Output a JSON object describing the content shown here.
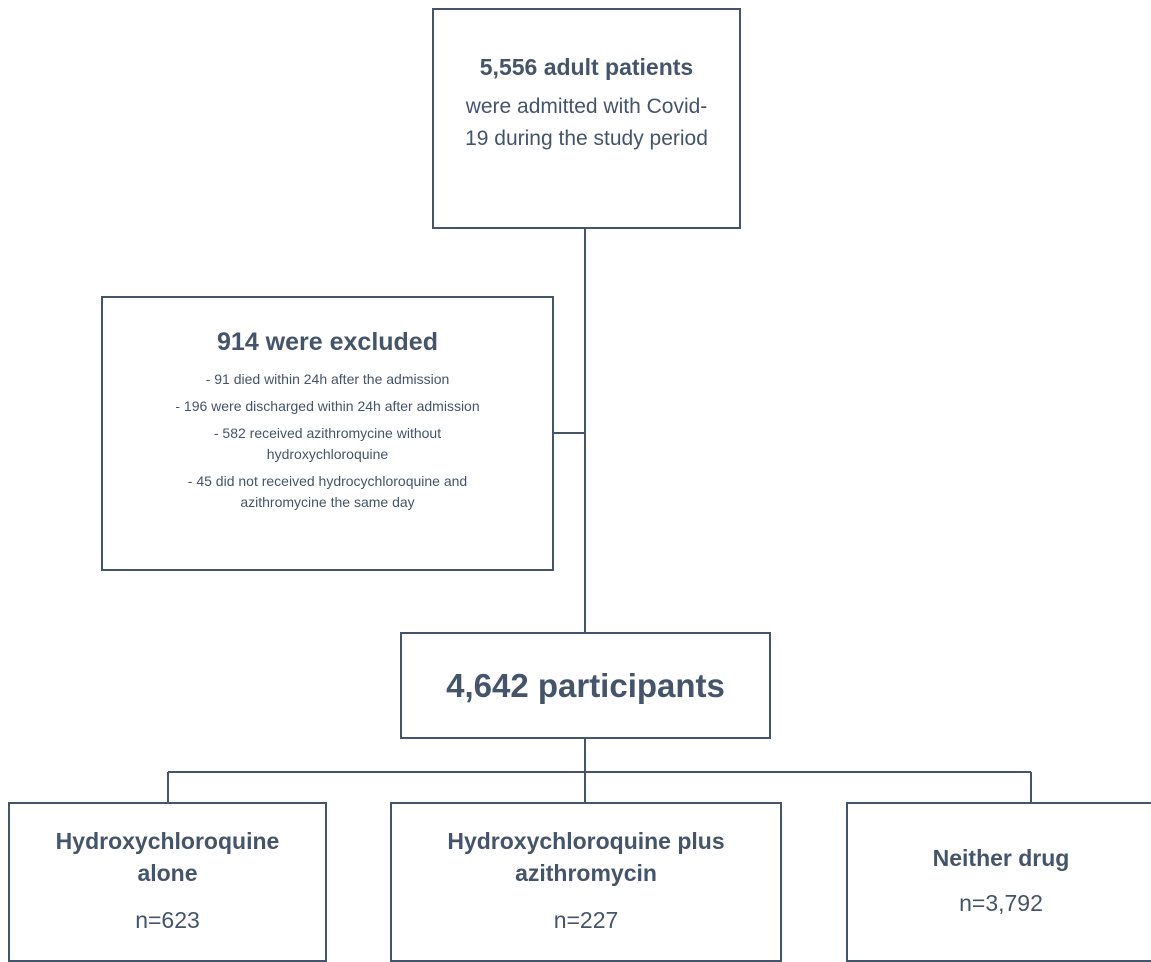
{
  "nodes": [
    {
      "title": "5,556 adult patients",
      "text": "were admitted with Covid-19 during the study period"
    },
    {
      "title": "914 were excluded",
      "items": [
        "- 91 died within 24h after the admission",
        "- 196 were discharged within 24h after admission",
        "- 582 received azithromycine without hydroxychloroquine",
        "- 45 did not received hydrocychloroquine and azithromycine the same day"
      ]
    },
    {
      "title": "4,642 participants"
    },
    {
      "title": "Hydroxychloroquine alone",
      "text": "n=623"
    },
    {
      "title": "Hydroxychloroquine plus azithromycin",
      "text": "n=227"
    },
    {
      "title": "Neither drug",
      "text": "n=3,792"
    }
  ]
}
